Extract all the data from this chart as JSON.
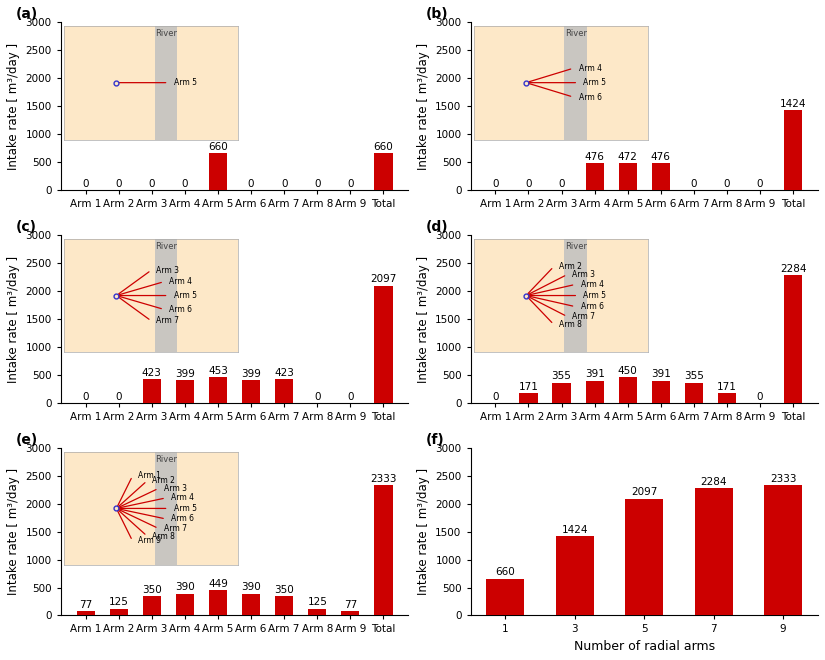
{
  "subplots": [
    {
      "label": "(a)",
      "bar_values": [
        0,
        0,
        0,
        0,
        660,
        0,
        0,
        0,
        0,
        660
      ],
      "categories": [
        "Arm 1",
        "Arm 2",
        "Arm 3",
        "Arm 4",
        "Arm 5",
        "Arm 6",
        "Arm 7",
        "Arm 8",
        "Arm 9",
        "Total"
      ],
      "arms": [
        "Arm 5"
      ],
      "arm_angles": [
        0
      ],
      "n_arms": 1
    },
    {
      "label": "(b)",
      "bar_values": [
        0,
        0,
        0,
        476,
        472,
        476,
        0,
        0,
        0,
        1424
      ],
      "categories": [
        "Arm 1",
        "Arm 2",
        "Arm 3",
        "Arm 4",
        "Arm 5",
        "Arm 6",
        "Arm 7",
        "Arm 8",
        "Arm 9",
        "Total"
      ],
      "arms": [
        "Arm 4",
        "Arm 5",
        "Arm 6"
      ],
      "arm_angles": [
        25,
        0,
        -25
      ],
      "n_arms": 3
    },
    {
      "label": "(c)",
      "bar_values": [
        0,
        0,
        423,
        399,
        453,
        399,
        423,
        0,
        0,
        2097
      ],
      "categories": [
        "Arm 1",
        "Arm 2",
        "Arm 3",
        "Arm 4",
        "Arm 5",
        "Arm 6",
        "Arm 7",
        "Arm 8",
        "Arm 9",
        "Total"
      ],
      "arms": [
        "Arm 3",
        "Arm 4",
        "Arm 5",
        "Arm 6",
        "Arm 7"
      ],
      "arm_angles": [
        48,
        24,
        0,
        -24,
        -48
      ],
      "n_arms": 5
    },
    {
      "label": "(d)",
      "bar_values": [
        0,
        171,
        355,
        391,
        450,
        391,
        355,
        171,
        0,
        2284
      ],
      "categories": [
        "Arm 1",
        "Arm 2",
        "Arm 3",
        "Arm 4",
        "Arm 5",
        "Arm 6",
        "Arm 7",
        "Arm 8",
        "Arm 9",
        "Total"
      ],
      "arms": [
        "Arm 2",
        "Arm 3",
        "Arm 4",
        "Arm 5",
        "Arm 6",
        "Arm 7",
        "Arm 8"
      ],
      "arm_angles": [
        58,
        38,
        19,
        0,
        -19,
        -38,
        -58
      ],
      "n_arms": 7
    },
    {
      "label": "(e)",
      "bar_values": [
        77,
        125,
        350,
        390,
        449,
        390,
        350,
        125,
        77,
        2333
      ],
      "categories": [
        "Arm 1",
        "Arm 2",
        "Arm 3",
        "Arm 4",
        "Arm 5",
        "Arm 6",
        "Arm 7",
        "Arm 8",
        "Arm 9",
        "Total"
      ],
      "arms": [
        "Arm 1",
        "Arm 2",
        "Arm 3",
        "Arm 4",
        "Arm 5",
        "Arm 6",
        "Arm 7",
        "Arm 8",
        "Arm 9"
      ],
      "arm_angles": [
        72,
        54,
        36,
        18,
        0,
        -18,
        -36,
        -54,
        -72
      ],
      "n_arms": 9
    },
    {
      "label": "(f)",
      "bar_values": [
        660,
        1424,
        2097,
        2284,
        2333
      ],
      "categories": [
        "1",
        "3",
        "5",
        "7",
        "9"
      ],
      "xlabel": "Number of radial arms"
    }
  ],
  "bar_color": "#cc0000",
  "background_color": "#fde8c8",
  "river_color": "#c0c0c0",
  "ylabel": "Intake rate [ m³/day ]",
  "ylim": [
    0,
    3000
  ],
  "yticks": [
    0,
    500,
    1000,
    1500,
    2000,
    2500,
    3000
  ],
  "river_label": "River",
  "arm_line_color": "#cc0000",
  "center_color": "#3333cc",
  "label_fontsize": 8.5,
  "tick_fontsize": 7.5,
  "bar_label_fontsize": 7.5,
  "title_fontsize": 10
}
